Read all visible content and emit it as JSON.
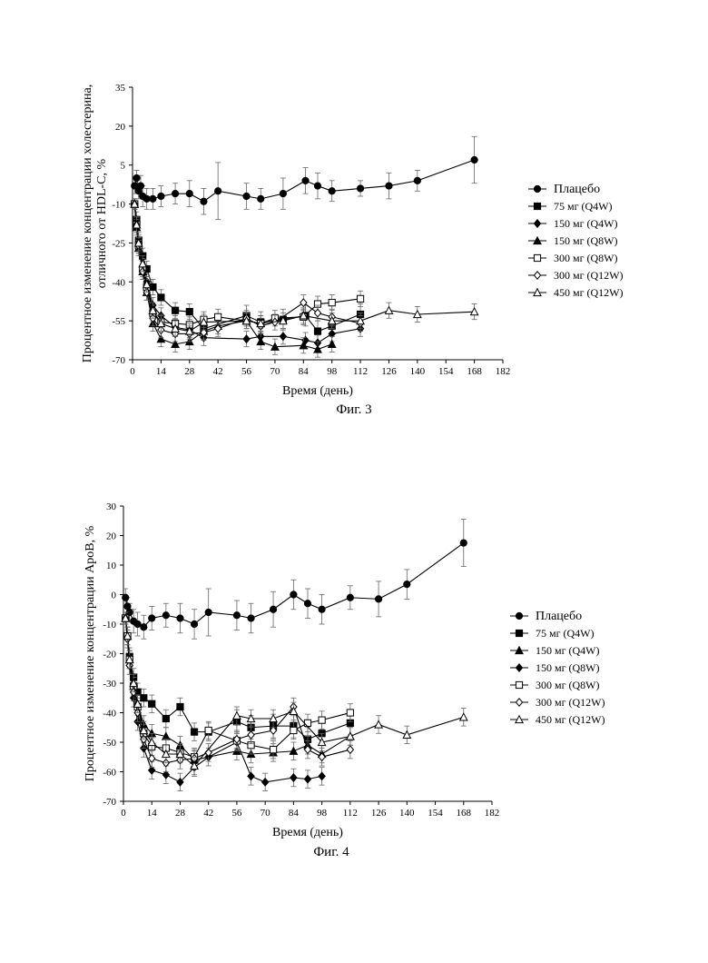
{
  "figures": [
    {
      "caption": "Фиг. 3",
      "chart_data": {
        "type": "line",
        "title": "",
        "xlabel": "Время (день)",
        "ylabel_lines": [
          "Процентное изменение концентрации холестерина,",
          "отличного от HDL-C, %"
        ],
        "xlim": [
          0,
          182
        ],
        "ylim": [
          -70,
          35
        ],
        "xticks": [
          0,
          14,
          28,
          42,
          56,
          70,
          84,
          98,
          112,
          126,
          140,
          154,
          168,
          182
        ],
        "yticks": [
          35,
          20,
          5,
          -10,
          -25,
          -40,
          -55,
          -70
        ],
        "legend_position": "right",
        "series": [
          {
            "name": "Плацебо",
            "marker": "circle",
            "x": [
              1,
              2,
              3,
              4,
              5,
              7,
              10,
              14,
              21,
              28,
              35,
              42,
              56,
              63,
              74,
              85,
              91,
              98,
              112,
              126,
              140,
              168
            ],
            "y": [
              -3,
              0,
              -5,
              -3,
              -7,
              -8,
              -8,
              -7,
              -6,
              -6,
              -9,
              -5,
              -7,
              -8,
              -6,
              -1,
              -3,
              -5,
              -4,
              -3,
              -1,
              7
            ],
            "err": [
              3,
              3,
              3,
              4,
              4,
              4,
              4,
              4,
              4,
              5,
              5,
              11,
              5,
              4,
              6,
              5,
              5,
              4,
              3,
              5,
              4,
              9
            ]
          },
          {
            "name": "75 мг (Q4W)",
            "marker": "square-filled",
            "x": [
              1,
              2,
              3,
              5,
              7,
              10,
              14,
              21,
              28,
              35,
              56,
              63,
              74,
              85,
              91,
              98,
              112
            ],
            "y": [
              -10,
              -16,
              -24,
              -30,
              -35,
              -42,
              -46,
              -51,
              -51.5,
              -58,
              -53,
              -55.5,
              -54.5,
              -53,
              -59,
              -57,
              -52.5
            ],
            "err": [
              2,
              3,
              3,
              3,
              3,
              3,
              3,
              3,
              3,
              3,
              4,
              4,
              4,
              4,
              4,
              4,
              4
            ]
          },
          {
            "name": "150 мг (Q4W)",
            "marker": "diamond-filled",
            "x": [
              1,
              2,
              3,
              5,
              7,
              10,
              14,
              21,
              28,
              35,
              56,
              63,
              74,
              85,
              91,
              98,
              112
            ],
            "y": [
              -10,
              -18,
              -26,
              -34,
              -40,
              -49,
              -53,
              -57.5,
              -58.5,
              -61.5,
              -62,
              -61,
              -61,
              -62.5,
              -63.5,
              -60,
              -58
            ],
            "err": [
              2,
              3,
              3,
              3,
              3,
              3,
              3,
              3,
              3,
              3,
              3,
              3,
              3,
              3,
              3,
              3,
              3
            ]
          },
          {
            "name": "150 мг (Q8W)",
            "marker": "triangle-filled",
            "x": [
              1,
              2,
              3,
              5,
              7,
              10,
              14,
              21,
              28,
              35,
              42,
              56,
              63,
              70,
              84,
              91,
              98
            ],
            "y": [
              -10,
              -19,
              -27,
              -36,
              -44,
              -56,
              -62,
              -64,
              -63,
              -59,
              -57,
              -55,
              -63,
              -65,
              -64.5,
              -66,
              -64
            ],
            "err": [
              2,
              3,
              3,
              3,
              3,
              3,
              3,
              3,
              3,
              3,
              3,
              3,
              3,
              3,
              3,
              3,
              3
            ]
          },
          {
            "name": "300 мг (Q8W)",
            "marker": "square-open",
            "x": [
              1,
              2,
              3,
              5,
              7,
              10,
              14,
              21,
              28,
              35,
              42,
              56,
              63,
              70,
              84,
              91,
              98,
              112
            ],
            "y": [
              -10,
              -18,
              -26,
              -35,
              -42,
              -52,
              -55.5,
              -56,
              -56.5,
              -54.5,
              -53.5,
              -55,
              -56,
              -54,
              -53.5,
              -48.5,
              -48,
              -46.5
            ],
            "err": [
              2,
              3,
              3,
              3,
              3,
              3,
              3,
              3,
              3,
              3,
              3,
              3,
              3,
              3,
              3,
              3,
              3,
              3
            ]
          },
          {
            "name": "300 мг (Q12W)",
            "marker": "diamond-open",
            "x": [
              1,
              2,
              3,
              5,
              7,
              10,
              14,
              21,
              28,
              35,
              42,
              56,
              63,
              70,
              84,
              91,
              98,
              112
            ],
            "y": [
              -10,
              -18,
              -26,
              -36,
              -44,
              -54,
              -58.5,
              -60,
              -60,
              -59.5,
              -58,
              -54,
              -57,
              -55.5,
              -48,
              -52,
              -53.5,
              -56
            ],
            "err": [
              2,
              3,
              3,
              3,
              3,
              3,
              3,
              3,
              3,
              3,
              3,
              3,
              3,
              3,
              3,
              3,
              3,
              3
            ]
          },
          {
            "name": "450 мг (Q12W)",
            "marker": "triangle-open",
            "x": [
              1,
              2,
              3,
              5,
              7,
              10,
              14,
              21,
              28,
              35,
              56,
              63,
              74,
              84,
              98,
              112,
              126,
              140,
              168
            ],
            "y": [
              -10,
              -18,
              -25,
              -33,
              -41,
              -51,
              -56,
              -58,
              -59,
              -55.5,
              -55,
              -56,
              -55,
              -53,
              -55,
              -55,
              -51,
              -52.5,
              -51.5
            ],
            "err": [
              2,
              3,
              3,
              3,
              3,
              3,
              3,
              3,
              3,
              3,
              3,
              3,
              3,
              3,
              3,
              3,
              3,
              3,
              3
            ]
          }
        ]
      }
    },
    {
      "caption": "Фиг. 4",
      "chart_data": {
        "type": "line",
        "title": "",
        "xlabel": "Время (день)",
        "ylabel_lines": [
          "Процентное изменение концентрации ApoB, %"
        ],
        "xlim": [
          0,
          182
        ],
        "ylim": [
          -70,
          30
        ],
        "xticks": [
          0,
          14,
          28,
          42,
          56,
          70,
          84,
          98,
          112,
          126,
          140,
          154,
          168,
          182
        ],
        "yticks": [
          30,
          20,
          10,
          0,
          -10,
          -20,
          -30,
          -40,
          -50,
          -60,
          -70
        ],
        "legend_position": "right",
        "series": [
          {
            "name": "Плацебо",
            "marker": "circle",
            "x": [
              1,
              2,
              3,
              5,
              7,
              10,
              14,
              21,
              28,
              35,
              42,
              56,
              63,
              74,
              84,
              91,
              98,
              112,
              126,
              140,
              168
            ],
            "y": [
              -1,
              -4,
              -6,
              -9,
              -10,
              -11,
              -8,
              -7,
              -8,
              -10,
              -6,
              -7,
              -8,
              -5,
              0,
              -3,
              -5,
              -1,
              -1.5,
              3.5,
              17.5
            ],
            "err": [
              3,
              3,
              3,
              4,
              4,
              4,
              4,
              4,
              5,
              5,
              8,
              5,
              5,
              6,
              5,
              5,
              5,
              4,
              6,
              5,
              8
            ]
          },
          {
            "name": "75 мг (Q4W)",
            "marker": "square-filled",
            "x": [
              1,
              2,
              3,
              5,
              7,
              10,
              14,
              21,
              28,
              35,
              42,
              56,
              63,
              74,
              84,
              91,
              98,
              112
            ],
            "y": [
              -8,
              -14,
              -21,
              -28,
              -33,
              -35,
              -37,
              -42,
              -38,
              -46.5,
              -46.5,
              -43,
              -45,
              -44.5,
              -44.5,
              -49,
              -47,
              -43.5
            ],
            "err": [
              2,
              3,
              3,
              3,
              3,
              3,
              3,
              3,
              3,
              3,
              3,
              4,
              4,
              4,
              4,
              4,
              4,
              4
            ]
          },
          {
            "name": "150 мг (Q4W)",
            "marker": "triangle-filled",
            "x": [
              1,
              2,
              3,
              5,
              7,
              10,
              14,
              21,
              28,
              35,
              56,
              63,
              74,
              84,
              91,
              98,
              112
            ],
            "y": [
              -8,
              -14,
              -22,
              -31,
              -37,
              -44,
              -47,
              -48,
              -51,
              -56,
              -53,
              -54,
              -53.5,
              -53,
              -51,
              -54,
              -48
            ],
            "err": [
              2,
              3,
              3,
              3,
              3,
              3,
              3,
              3,
              3,
              3,
              3,
              3,
              3,
              3,
              3,
              3,
              3
            ]
          },
          {
            "name": "150 мг (Q8W)",
            "marker": "diamond-filled",
            "x": [
              1,
              2,
              3,
              5,
              7,
              10,
              14,
              21,
              28,
              35,
              42,
              56,
              63,
              70,
              84,
              91,
              98
            ],
            "y": [
              -8,
              -15,
              -24,
              -35,
              -43,
              -52,
              -59.5,
              -61,
              -63.5,
              -58.5,
              -55,
              -50,
              -61.5,
              -63.5,
              -62,
              -62.5,
              -61.5
            ],
            "err": [
              2,
              3,
              3,
              3,
              3,
              3,
              3,
              3,
              3,
              3,
              3,
              3,
              3,
              3,
              3,
              3,
              3
            ]
          },
          {
            "name": "300 мг (Q8W)",
            "marker": "square-open",
            "x": [
              1,
              2,
              3,
              5,
              7,
              10,
              14,
              21,
              28,
              35,
              42,
              56,
              63,
              74,
              84,
              91,
              98,
              112
            ],
            "y": [
              -8,
              -14,
              -22,
              -31,
              -38,
              -47,
              -51.5,
              -52,
              -53.5,
              -55,
              -46,
              -49.5,
              -51,
              -52.5,
              -46,
              -43.5,
              -42.5,
              -40
            ],
            "err": [
              2,
              3,
              3,
              3,
              3,
              3,
              3,
              3,
              3,
              3,
              3,
              3,
              3,
              3,
              3,
              3,
              3,
              3
            ]
          },
          {
            "name": "300 мг (Q12W)",
            "marker": "diamond-open",
            "x": [
              1,
              2,
              3,
              5,
              7,
              10,
              14,
              21,
              28,
              35,
              42,
              56,
              63,
              74,
              84,
              91,
              98,
              112
            ],
            "y": [
              -8,
              -15,
              -24,
              -33,
              -40,
              -49,
              -55.5,
              -57,
              -56,
              -55.5,
              -53.5,
              -49,
              -47.5,
              -46,
              -38,
              -52.5,
              -55,
              -52.5
            ],
            "err": [
              2,
              3,
              3,
              3,
              3,
              3,
              3,
              3,
              3,
              3,
              3,
              3,
              3,
              3,
              3,
              3,
              3,
              3
            ]
          },
          {
            "name": "450 мг (Q12W)",
            "marker": "triangle-open",
            "x": [
              1,
              2,
              3,
              5,
              7,
              10,
              14,
              21,
              28,
              35,
              56,
              63,
              74,
              84,
              98,
              112,
              126,
              140,
              168
            ],
            "y": [
              -8,
              -14,
              -22,
              -30,
              -37,
              -46,
              -50,
              -54,
              -54,
              -58,
              -41,
              -42,
              -42,
              -39.5,
              -50,
              -48,
              -44,
              -47.5,
              -41.5
            ],
            "err": [
              2,
              3,
              3,
              3,
              3,
              3,
              3,
              3,
              3,
              3,
              3,
              3,
              3,
              3,
              3,
              3,
              3,
              3,
              3
            ]
          }
        ]
      }
    }
  ]
}
